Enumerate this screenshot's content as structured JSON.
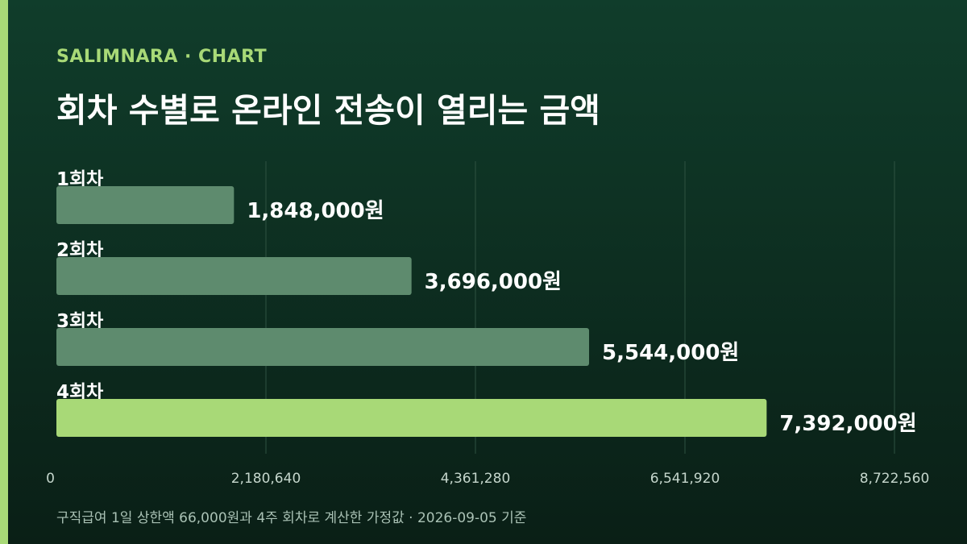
{
  "brand": "SALIMNARA · CHART",
  "title": "회차 수별로 온라인 전송이 열리는 금액",
  "footnote": "구직급여 1일 상한액 66,000원과 4주 회차로 계산한 가정값 · 2026-09-05 기준",
  "colors": {
    "accent": "#a8d977",
    "bar_default": "#5e8b6e",
    "bar_highlight": "#a8d977",
    "grid": "#2e5241",
    "tick_text": "#c5d6cc",
    "value_text": "#ffffff"
  },
  "chart_data": {
    "type": "bar",
    "orientation": "horizontal",
    "categories": [
      "1회차",
      "2회차",
      "3회차",
      "4회차"
    ],
    "values": [
      1848000,
      3696000,
      5544000,
      7392000
    ],
    "value_labels": [
      "1,848,000원",
      "3,696,000원",
      "5,544,000원",
      "7,392,000원"
    ],
    "highlight_index": 3,
    "xlim": [
      0,
      8722560
    ],
    "xticks": [
      0,
      2180640,
      4361280,
      6541920,
      8722560
    ],
    "xtick_labels": [
      "0",
      "2,180,640",
      "4,361,280",
      "6,541,920",
      "8,722,560"
    ],
    "grid": true
  }
}
